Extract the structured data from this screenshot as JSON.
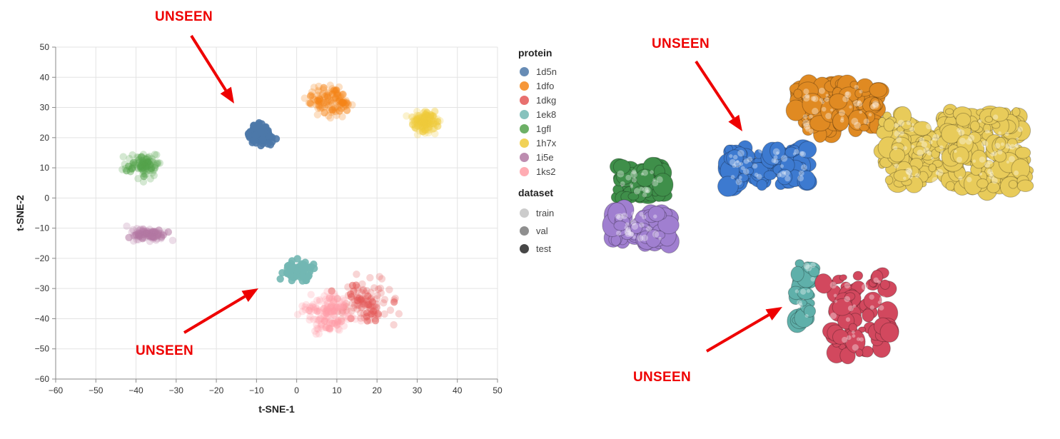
{
  "chart_data": {
    "type": "scatter",
    "title": "",
    "xlabel": "t-SNE-1",
    "ylabel": "t-SNE-2",
    "xlim": [
      -60,
      50
    ],
    "ylim": [
      -60,
      50
    ],
    "xticks": [
      -60,
      -50,
      -40,
      -30,
      -20,
      -10,
      0,
      10,
      20,
      30,
      40,
      50
    ],
    "yticks": [
      -60,
      -50,
      -40,
      -30,
      -20,
      -10,
      0,
      10,
      20,
      30,
      40,
      50
    ],
    "grid": true,
    "legend_placement": "right",
    "series": [
      {
        "name": "1d5n",
        "color": "#4c78a8",
        "dataset": "test",
        "center": [
          -9,
          21
        ],
        "spread": [
          4,
          4
        ],
        "count": 130
      },
      {
        "name": "1dfo",
        "color": "#f58518",
        "dataset": "train",
        "center": [
          8,
          32
        ],
        "spread": [
          7,
          7
        ],
        "count": 120
      },
      {
        "name": "1dkg",
        "color": "#e45756",
        "dataset": "train",
        "center": [
          17,
          -34
        ],
        "spread": [
          9,
          9
        ],
        "count": 110
      },
      {
        "name": "1ek8",
        "color": "#72b7b2",
        "dataset": "test",
        "center": [
          0,
          -24
        ],
        "spread": [
          6,
          5
        ],
        "count": 70
      },
      {
        "name": "1gfl",
        "color": "#54a24b",
        "dataset": "train",
        "center": [
          -38,
          11
        ],
        "spread": [
          6,
          5
        ],
        "count": 100
      },
      {
        "name": "1h7x",
        "color": "#eeca3b",
        "dataset": "train",
        "center": [
          32,
          25
        ],
        "spread": [
          5,
          5
        ],
        "count": 130
      },
      {
        "name": "1i5e",
        "color": "#b279a2",
        "dataset": "train",
        "center": [
          -37,
          -12
        ],
        "spread": [
          6,
          3
        ],
        "count": 100
      },
      {
        "name": "1ks2",
        "color": "#ff9da6",
        "dataset": "train",
        "center": [
          8,
          -38
        ],
        "spread": [
          9,
          9
        ],
        "count": 130
      }
    ],
    "legend": {
      "protein_title": "protein",
      "proteins": [
        {
          "name": "1d5n",
          "color": "#4c78a8"
        },
        {
          "name": "1dfo",
          "color": "#f58518"
        },
        {
          "name": "1dkg",
          "color": "#e45756"
        },
        {
          "name": "1ek8",
          "color": "#72b7b2"
        },
        {
          "name": "1gfl",
          "color": "#54a24b"
        },
        {
          "name": "1h7x",
          "color": "#eeca3b"
        },
        {
          "name": "1i5e",
          "color": "#b279a2"
        },
        {
          "name": "1ks2",
          "color": "#ff9da6"
        }
      ],
      "dataset_title": "dataset",
      "datasets": [
        {
          "name": "train",
          "opacity": 0.25
        },
        {
          "name": "val",
          "opacity": 0.55
        },
        {
          "name": "test",
          "opacity": 0.9
        }
      ]
    },
    "annotations": [
      {
        "text": "UNSEEN",
        "target": "1d5n"
      },
      {
        "text": "UNSEEN",
        "target": "1ek8"
      }
    ]
  },
  "structures": {
    "annotations": [
      {
        "text": "UNSEEN",
        "target": "1d5n"
      },
      {
        "text": "UNSEEN",
        "target": "1ek8"
      }
    ],
    "colors": {
      "1gfl": "#3f8f4a",
      "1i5e": "#a07fd0",
      "1d5n": "#3d7ad0",
      "1dfo": "#e08a22",
      "1h7x": "#e8cb5a",
      "1ek8": "#5fb0aa",
      "1dkg": "#d2485e"
    }
  }
}
